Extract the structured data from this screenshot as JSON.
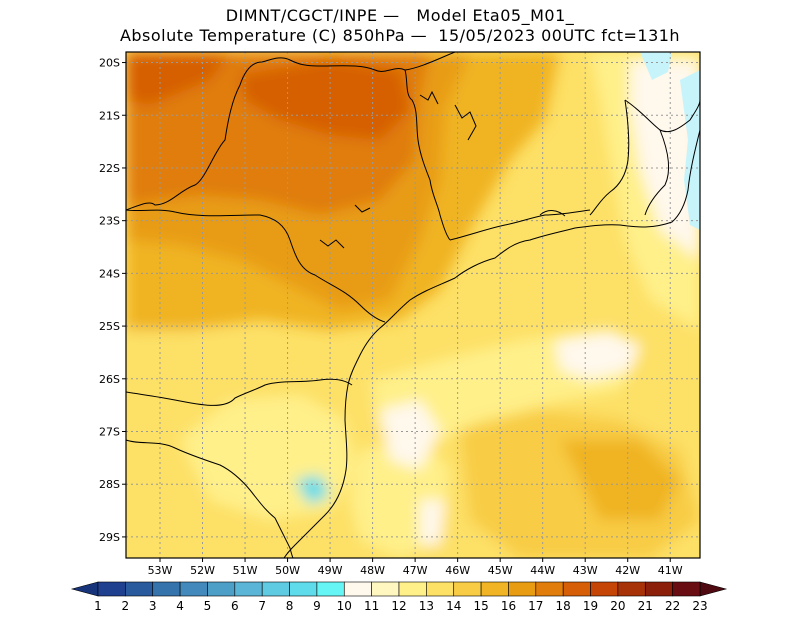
{
  "title": {
    "line1": "DIMNT/CGCT/INPE —   Model Eta05_M01_",
    "line2": "Absolute Temperature (C) 850hPa —  15/05/2023 00UTC fct=131h"
  },
  "map": {
    "lat_labels": [
      "20S",
      "21S",
      "22S",
      "23S",
      "24S",
      "25S",
      "26S",
      "27S",
      "28S",
      "29S"
    ],
    "lon_labels": [
      "53W",
      "52W",
      "51W",
      "50W",
      "49W",
      "48W",
      "47W",
      "46W",
      "45W",
      "44W",
      "43W",
      "42W",
      "41W"
    ],
    "lat_range": [
      -29.4,
      -19.8
    ],
    "lon_range": [
      -53.8,
      -40.3
    ]
  },
  "colorbar": {
    "labels": [
      "1",
      "2",
      "3",
      "4",
      "5",
      "6",
      "7",
      "8",
      "9",
      "10",
      "11",
      "12",
      "13",
      "14",
      "15",
      "16",
      "17",
      "18",
      "19",
      "20",
      "21",
      "22",
      "23"
    ],
    "colors": [
      "#1f3f8f",
      "#2a5a9e",
      "#3573ad",
      "#4389bb",
      "#4e9fc8",
      "#5bb5d6",
      "#5ecbe3",
      "#5fdceb",
      "#66f5f5",
      "#fff8ec",
      "#fff6c0",
      "#fff08a",
      "#fde066",
      "#f8cc45",
      "#f0b424",
      "#e89c12",
      "#e07d0b",
      "#d65e06",
      "#c44505",
      "#a83207",
      "#8c1f0a",
      "#6a0d12"
    ],
    "under_color": "#17337a",
    "over_color": "#4e0a10"
  }
}
